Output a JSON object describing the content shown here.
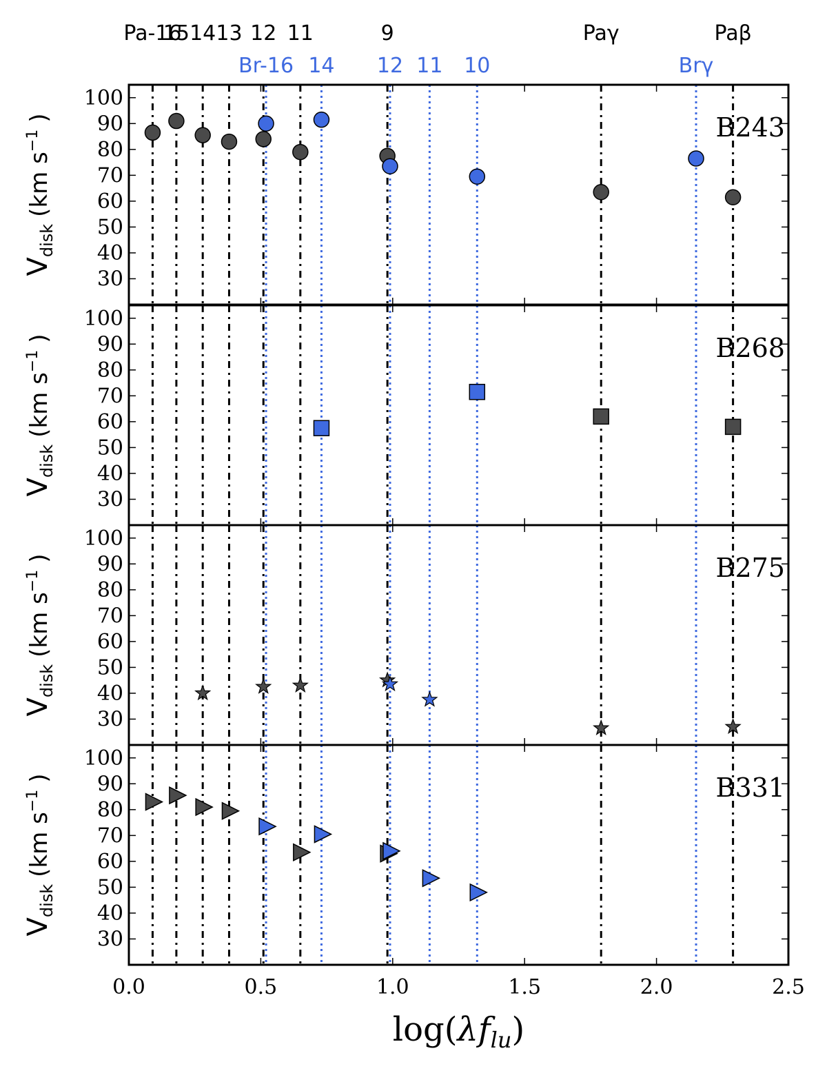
{
  "chart_data": {
    "type": "scatter",
    "xlabel": "log(λf_lu)",
    "xlabel_parts": {
      "pre": "log(",
      "var": "λ",
      "func": "f",
      "sub": "lu",
      "post": ")"
    },
    "ylabel_parts": {
      "main": "V",
      "sub": "disk",
      "units_pre": "(km s",
      "units_exp": "−1",
      "units_post": ")"
    },
    "xlim": [
      0.0,
      2.5
    ],
    "ylim": [
      20,
      105
    ],
    "x_ticks": [
      0.0,
      0.5,
      1.0,
      1.5,
      2.0,
      2.5
    ],
    "x_tick_labels": [
      "0.0",
      "0.5",
      "1.0",
      "1.5",
      "2.0",
      "2.5"
    ],
    "y_ticks": [
      30,
      40,
      50,
      60,
      70,
      80,
      90,
      100
    ],
    "y_tick_labels": [
      "30",
      "40",
      "50",
      "60",
      "70",
      "80",
      "90",
      "100"
    ],
    "paschen_color": "#000000",
    "brackett_color": "#3f6ae0",
    "paschen_marker_color": "#4a4a4a",
    "brackett_marker_color": "#3f6ae0",
    "paschen_lines": [
      {
        "x": 0.09,
        "label": "Pa-16"
      },
      {
        "x": 0.18,
        "label": "15"
      },
      {
        "x": 0.28,
        "label": "14"
      },
      {
        "x": 0.38,
        "label": "13"
      },
      {
        "x": 0.51,
        "label": "12"
      },
      {
        "x": 0.65,
        "label": "11"
      },
      {
        "x": 0.98,
        "label": "9"
      },
      {
        "x": 1.79,
        "label": "Paγ"
      },
      {
        "x": 2.29,
        "label": "Paβ"
      }
    ],
    "brackett_lines": [
      {
        "x": 0.52,
        "label": "Br-16"
      },
      {
        "x": 0.73,
        "label": "14"
      },
      {
        "x": 0.99,
        "label": "12"
      },
      {
        "x": 1.14,
        "label": "11"
      },
      {
        "x": 1.32,
        "label": "10"
      },
      {
        "x": 2.15,
        "label": "Brγ"
      }
    ],
    "panels": [
      {
        "name": "B243",
        "marker": "circle",
        "series": [
          {
            "name": "Paschen",
            "color_key": "paschen",
            "x": [
              0.09,
              0.18,
              0.28,
              0.38,
              0.51,
              0.65,
              0.98,
              1.79,
              2.29
            ],
            "y": [
              86.5,
              91,
              85.5,
              83,
              84,
              79,
              77.5,
              63.5,
              61.5
            ]
          },
          {
            "name": "Brackett",
            "color_key": "brackett",
            "x": [
              0.52,
              0.73,
              0.99,
              1.32,
              2.15
            ],
            "y": [
              90,
              91.5,
              73.5,
              69.5,
              76.5
            ]
          }
        ]
      },
      {
        "name": "B268",
        "marker": "square",
        "series": [
          {
            "name": "Paschen",
            "color_key": "paschen",
            "x": [
              1.79,
              2.29
            ],
            "y": [
              62,
              58
            ]
          },
          {
            "name": "Brackett",
            "color_key": "brackett",
            "x": [
              0.73,
              1.32
            ],
            "y": [
              57.5,
              71.5
            ]
          }
        ]
      },
      {
        "name": "B275",
        "marker": "star",
        "series": [
          {
            "name": "Paschen",
            "color_key": "paschen",
            "x": [
              0.28,
              0.51,
              0.65,
              0.98,
              1.79,
              2.29
            ],
            "y": [
              40,
              42.5,
              43,
              45,
              26.5,
              27
            ]
          },
          {
            "name": "Brackett",
            "color_key": "brackett",
            "x": [
              0.99,
              1.14
            ],
            "y": [
              43.5,
              37.5
            ]
          }
        ]
      },
      {
        "name": "B331",
        "marker": "triangle-right",
        "series": [
          {
            "name": "Paschen",
            "color_key": "paschen",
            "x": [
              0.09,
              0.18,
              0.28,
              0.38,
              0.65,
              0.98
            ],
            "y": [
              83,
              85.5,
              81,
              79.5,
              63.5,
              63
            ]
          },
          {
            "name": "Brackett",
            "color_key": "brackett",
            "x": [
              0.52,
              0.73,
              0.99,
              1.14,
              1.32
            ],
            "y": [
              73.5,
              70.5,
              64,
              53.5,
              48
            ]
          }
        ]
      }
    ]
  }
}
